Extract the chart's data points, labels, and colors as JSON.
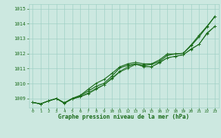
{
  "title": "Graphe pression niveau de la mer (hPa)",
  "background_color": "#cce8e0",
  "grid_color": "#9ecfc4",
  "line_color": "#1a6b1a",
  "text_color": "#1a6b1a",
  "xlim": [
    -0.5,
    23.5
  ],
  "ylim": [
    1008.4,
    1015.3
  ],
  "yticks": [
    1009,
    1010,
    1011,
    1012,
    1013,
    1014,
    1015
  ],
  "xticks": [
    0,
    1,
    2,
    3,
    4,
    5,
    6,
    7,
    8,
    9,
    10,
    11,
    12,
    13,
    14,
    15,
    16,
    17,
    18,
    19,
    20,
    21,
    22,
    23
  ],
  "series": [
    [
      1008.75,
      1008.65,
      1008.85,
      1009.0,
      1008.72,
      1009.0,
      1009.18,
      1009.5,
      1009.82,
      1010.02,
      1010.5,
      1011.05,
      1011.22,
      1011.32,
      1011.22,
      1011.28,
      1011.48,
      1011.88,
      1011.98,
      1012.02,
      1012.52,
      1013.12,
      1013.78,
      1014.48
    ],
    [
      1008.75,
      1008.65,
      1008.85,
      1009.0,
      1008.72,
      1008.98,
      1009.12,
      1009.38,
      1009.68,
      1009.92,
      1010.32,
      1010.78,
      1011.02,
      1011.28,
      1011.18,
      1011.12,
      1011.42,
      1011.72,
      1011.82,
      1011.92,
      1012.28,
      1012.62,
      1013.38,
      1013.82
    ],
    [
      1008.75,
      1008.65,
      1008.85,
      1009.0,
      1008.68,
      1008.98,
      1009.12,
      1009.32,
      1009.62,
      1009.92,
      1010.38,
      1010.82,
      1011.12,
      1011.32,
      1011.12,
      1011.12,
      1011.38,
      1011.72,
      1011.82,
      1011.92,
      1012.32,
      1012.62,
      1013.32,
      1013.82
    ],
    [
      1008.75,
      1008.65,
      1008.85,
      1009.02,
      1008.72,
      1009.02,
      1009.22,
      1009.62,
      1010.02,
      1010.28,
      1010.68,
      1011.12,
      1011.32,
      1011.42,
      1011.32,
      1011.32,
      1011.58,
      1011.98,
      1011.98,
      1012.02,
      1012.58,
      1013.22,
      1013.82,
      1014.48
    ]
  ]
}
